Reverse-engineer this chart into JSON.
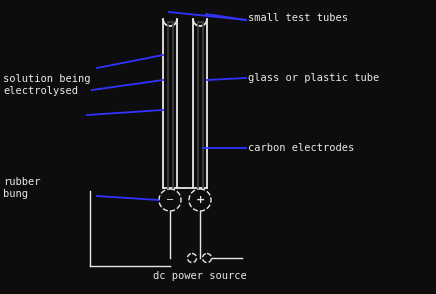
{
  "bg_color": "#0d0d0d",
  "fg_color": "#e8e8e8",
  "blue_color": "#3333ff",
  "tube_color": "#555555",
  "labels": {
    "small_test_tubes": "small test tubes",
    "glass_plastic_tube": "glass or plastic tube",
    "carbon_electrodes": "carbon electrodes",
    "rubber_bung": "rubber\nbung",
    "solution": "solution being\nelectrolysed",
    "dc_power": "dc power source"
  },
  "font_size": 7.5,
  "figsize": [
    4.36,
    2.94
  ],
  "dpi": 100,
  "xlim": [
    0,
    436
  ],
  "ylim": [
    0,
    294
  ]
}
